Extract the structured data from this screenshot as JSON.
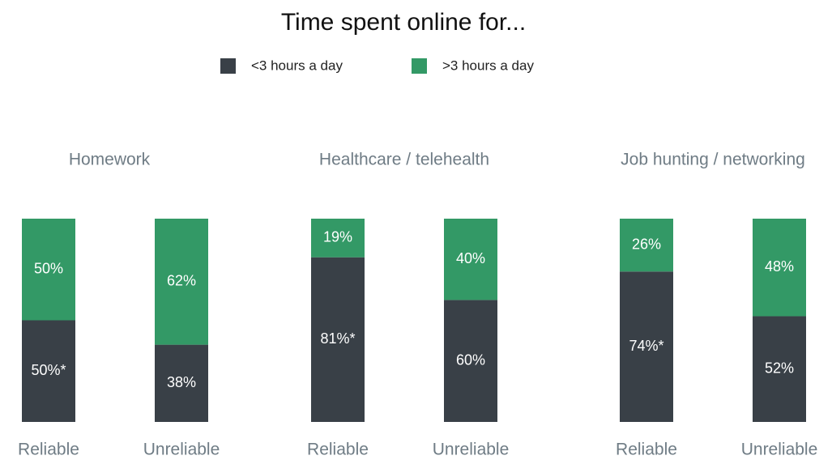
{
  "title": "Time spent online for...",
  "legend": [
    {
      "name": "<3 hours a day",
      "color": "#394047"
    },
    {
      "name": ">3 hours a day",
      "color": "#339966"
    }
  ],
  "chart_data": [
    {
      "type": "bar",
      "title": "Homework",
      "categories": [
        "Reliable",
        "Unreliable"
      ],
      "ylim": [
        0,
        100
      ],
      "series": [
        {
          "values": [
            50,
            38
          ],
          "value_labels": [
            "50%*",
            "38%"
          ]
        },
        {
          "values": [
            50,
            62
          ],
          "value_labels": [
            "50%",
            "62%"
          ]
        }
      ]
    },
    {
      "type": "bar",
      "title": "Healthcare / telehealth",
      "categories": [
        "Reliable",
        "Unreliable"
      ],
      "ylim": [
        0,
        100
      ],
      "series": [
        {
          "values": [
            81,
            60
          ],
          "value_labels": [
            "81%*",
            "60%"
          ]
        },
        {
          "values": [
            19,
            40
          ],
          "value_labels": [
            "19%",
            "40%"
          ]
        }
      ]
    },
    {
      "type": "bar",
      "title": "Job hunting / networking",
      "categories": [
        "Reliable",
        "Unreliable"
      ],
      "ylim": [
        0,
        100
      ],
      "series": [
        {
          "values": [
            74,
            52
          ],
          "value_labels": [
            "74%*",
            "52%"
          ]
        },
        {
          "values": [
            26,
            48
          ],
          "value_labels": [
            "26%",
            "48%"
          ]
        }
      ]
    }
  ]
}
